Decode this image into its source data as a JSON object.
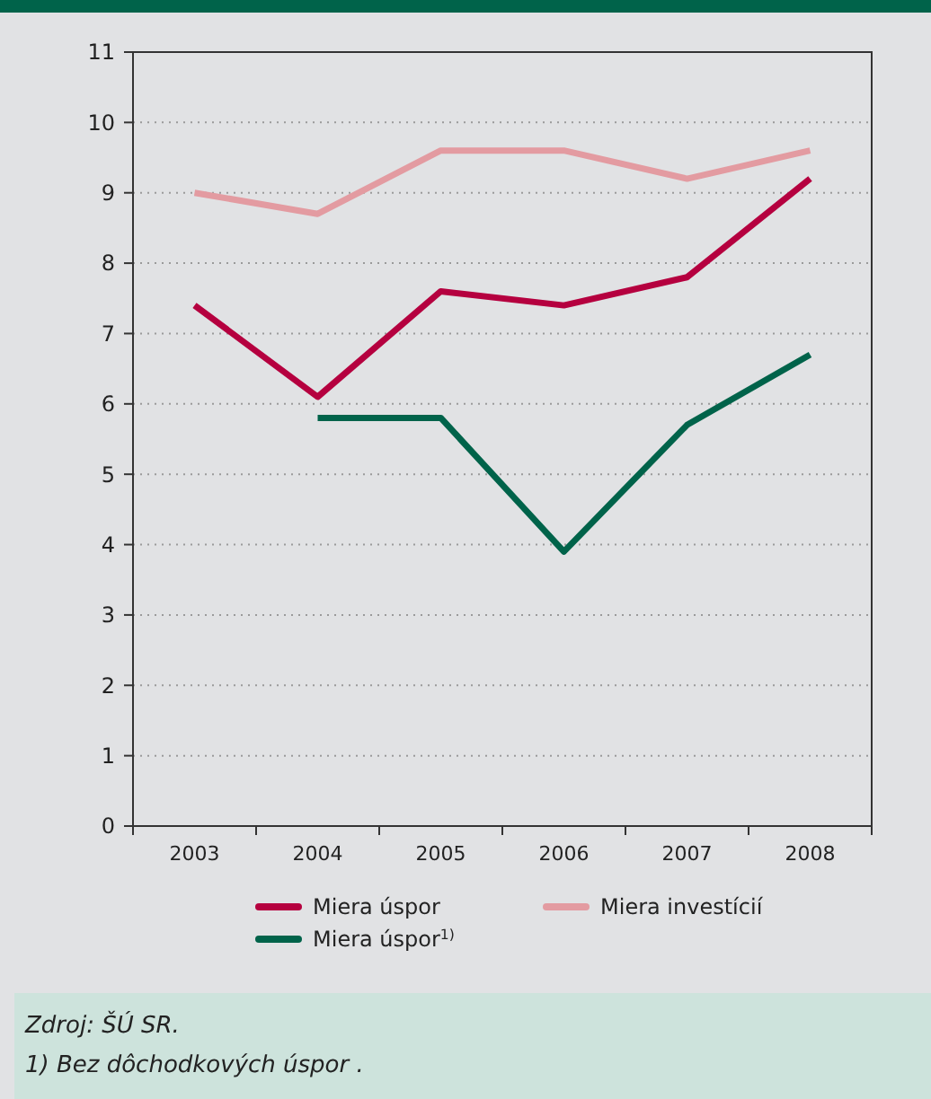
{
  "chart_data": {
    "type": "line",
    "categories": [
      "2003",
      "2004",
      "2005",
      "2006",
      "2007",
      "2008"
    ],
    "series": [
      {
        "name": "Miera úspor",
        "color": "#b5003f",
        "values": [
          7.4,
          6.1,
          7.6,
          7.4,
          7.8,
          9.2
        ]
      },
      {
        "name": "Miera investícií",
        "color": "#e39ba1",
        "values": [
          9.0,
          8.7,
          9.6,
          9.6,
          9.2,
          9.6
        ]
      },
      {
        "name": "Miera úspor$^{1)}$",
        "color": "#00634a",
        "values": [
          null,
          5.8,
          5.8,
          3.9,
          5.7,
          6.7
        ]
      }
    ],
    "ylim": [
      0,
      11
    ],
    "yticks": [
      0,
      1,
      2,
      3,
      4,
      5,
      6,
      7,
      8,
      9,
      10,
      11
    ],
    "grid": "y",
    "legend": "bottom",
    "line_style": "solid",
    "marker": "none",
    "annotations": [
      "Zdroj: ŠÚ SR.",
      "1) Bez dôchodkových úspor ."
    ]
  }
}
